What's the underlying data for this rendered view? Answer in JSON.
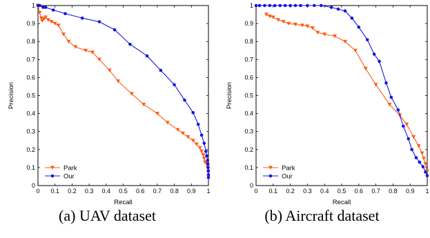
{
  "captions": [
    "(a) UAV dataset",
    "(b) Aircraft dataset"
  ],
  "colors": {
    "park": "#ff5a14",
    "our": "#1414e6"
  },
  "chart_data": [
    {
      "type": "line",
      "caption": "(a) UAV dataset",
      "xlabel": "Recall",
      "ylabel": "Precision",
      "xlim": [
        0,
        1
      ],
      "ylim": [
        0,
        1
      ],
      "xticks": [
        "0",
        "0.1",
        "0.2",
        "0.3",
        "0.4",
        "0.5",
        "0.6",
        "0.7",
        "0.8",
        "0.9",
        "1"
      ],
      "yticks": [
        "0",
        "0.1",
        "0.2",
        "0.3",
        "0.4",
        "0.5",
        "0.6",
        "0.7",
        "0.8",
        "0.9",
        "1"
      ],
      "legend_position": "bottom-left",
      "series": [
        {
          "name": "Park",
          "marker": "triangle-down",
          "points": [
            [
              0.0,
              1.0
            ],
            [
              0.01,
              0.96
            ],
            [
              0.02,
              0.93
            ],
            [
              0.025,
              0.915
            ],
            [
              0.035,
              0.925
            ],
            [
              0.045,
              0.935
            ],
            [
              0.06,
              0.92
            ],
            [
              0.08,
              0.91
            ],
            [
              0.1,
              0.9
            ],
            [
              0.12,
              0.89
            ],
            [
              0.15,
              0.84
            ],
            [
              0.18,
              0.8
            ],
            [
              0.22,
              0.77
            ],
            [
              0.28,
              0.75
            ],
            [
              0.32,
              0.74
            ],
            [
              0.36,
              0.7
            ],
            [
              0.42,
              0.64
            ],
            [
              0.47,
              0.58
            ],
            [
              0.55,
              0.51
            ],
            [
              0.62,
              0.45
            ],
            [
              0.7,
              0.4
            ],
            [
              0.76,
              0.35
            ],
            [
              0.82,
              0.31
            ],
            [
              0.85,
              0.29
            ],
            [
              0.88,
              0.27
            ],
            [
              0.91,
              0.25
            ],
            [
              0.93,
              0.23
            ],
            [
              0.95,
              0.21
            ],
            [
              0.96,
              0.19
            ],
            [
              0.97,
              0.17
            ],
            [
              0.975,
              0.15
            ],
            [
              0.98,
              0.13
            ],
            [
              0.99,
              0.12
            ],
            [
              0.995,
              0.1
            ],
            [
              1.0,
              0.08
            ]
          ]
        },
        {
          "name": "Our",
          "marker": "circle",
          "points": [
            [
              0.0,
              1.0
            ],
            [
              0.01,
              1.0
            ],
            [
              0.03,
              0.99
            ],
            [
              0.045,
              0.99
            ],
            [
              0.09,
              0.975
            ],
            [
              0.16,
              0.955
            ],
            [
              0.26,
              0.93
            ],
            [
              0.36,
              0.91
            ],
            [
              0.45,
              0.865
            ],
            [
              0.54,
              0.785
            ],
            [
              0.64,
              0.72
            ],
            [
              0.72,
              0.64
            ],
            [
              0.8,
              0.56
            ],
            [
              0.86,
              0.475
            ],
            [
              0.91,
              0.405
            ],
            [
              0.94,
              0.34
            ],
            [
              0.96,
              0.28
            ],
            [
              0.975,
              0.235
            ],
            [
              0.985,
              0.19
            ],
            [
              0.99,
              0.165
            ],
            [
              0.995,
              0.14
            ],
            [
              0.997,
              0.12
            ],
            [
              0.998,
              0.1
            ],
            [
              0.999,
              0.08
            ],
            [
              1.0,
              0.06
            ],
            [
              1.0,
              0.045
            ]
          ]
        }
      ]
    },
    {
      "type": "line",
      "caption": "(b) Aircraft dataset",
      "xlabel": "Recall",
      "ylabel": "Precision",
      "xlim": [
        0,
        1
      ],
      "ylim": [
        0,
        1
      ],
      "xticks": [
        "0",
        "0.1",
        "0.2",
        "0.3",
        "0.4",
        "0.5",
        "0.6",
        "0.7",
        "0.8",
        "0.9",
        "1"
      ],
      "yticks": [
        "0",
        "0.1",
        "0.2",
        "0.3",
        "0.4",
        "0.5",
        "0.6",
        "0.7",
        "0.8",
        "0.9",
        "1"
      ],
      "legend_position": "bottom-left",
      "series": [
        {
          "name": "Park",
          "marker": "triangle-down",
          "points": [
            [
              0.06,
              0.95
            ],
            [
              0.08,
              0.94
            ],
            [
              0.1,
              0.935
            ],
            [
              0.13,
              0.92
            ],
            [
              0.16,
              0.91
            ],
            [
              0.19,
              0.9
            ],
            [
              0.23,
              0.895
            ],
            [
              0.27,
              0.89
            ],
            [
              0.3,
              0.885
            ],
            [
              0.33,
              0.875
            ],
            [
              0.36,
              0.85
            ],
            [
              0.4,
              0.84
            ],
            [
              0.46,
              0.83
            ],
            [
              0.52,
              0.8
            ],
            [
              0.58,
              0.75
            ],
            [
              0.64,
              0.65
            ],
            [
              0.7,
              0.56
            ],
            [
              0.78,
              0.45
            ],
            [
              0.84,
              0.39
            ],
            [
              0.88,
              0.34
            ],
            [
              0.92,
              0.27
            ],
            [
              0.95,
              0.22
            ],
            [
              0.97,
              0.18
            ],
            [
              0.98,
              0.15
            ],
            [
              0.99,
              0.12
            ],
            [
              1.0,
              0.08
            ]
          ]
        },
        {
          "name": "Our",
          "marker": "circle",
          "points": [
            [
              0.0,
              1.0
            ],
            [
              0.02,
              1.0
            ],
            [
              0.05,
              1.0
            ],
            [
              0.08,
              1.0
            ],
            [
              0.11,
              1.0
            ],
            [
              0.14,
              1.0
            ],
            [
              0.17,
              1.0
            ],
            [
              0.2,
              1.0
            ],
            [
              0.23,
              1.0
            ],
            [
              0.26,
              1.0
            ],
            [
              0.3,
              1.0
            ],
            [
              0.34,
              1.0
            ],
            [
              0.38,
              1.0
            ],
            [
              0.44,
              0.99
            ],
            [
              0.48,
              0.98
            ],
            [
              0.52,
              0.97
            ],
            [
              0.56,
              0.93
            ],
            [
              0.6,
              0.88
            ],
            [
              0.65,
              0.81
            ],
            [
              0.69,
              0.73
            ],
            [
              0.72,
              0.69
            ],
            [
              0.76,
              0.57
            ],
            [
              0.79,
              0.49
            ],
            [
              0.83,
              0.42
            ],
            [
              0.86,
              0.33
            ],
            [
              0.89,
              0.26
            ],
            [
              0.91,
              0.2
            ],
            [
              0.935,
              0.155
            ],
            [
              0.955,
              0.13
            ],
            [
              0.975,
              0.105
            ],
            [
              0.99,
              0.075
            ],
            [
              1.0,
              0.055
            ]
          ]
        }
      ]
    }
  ]
}
